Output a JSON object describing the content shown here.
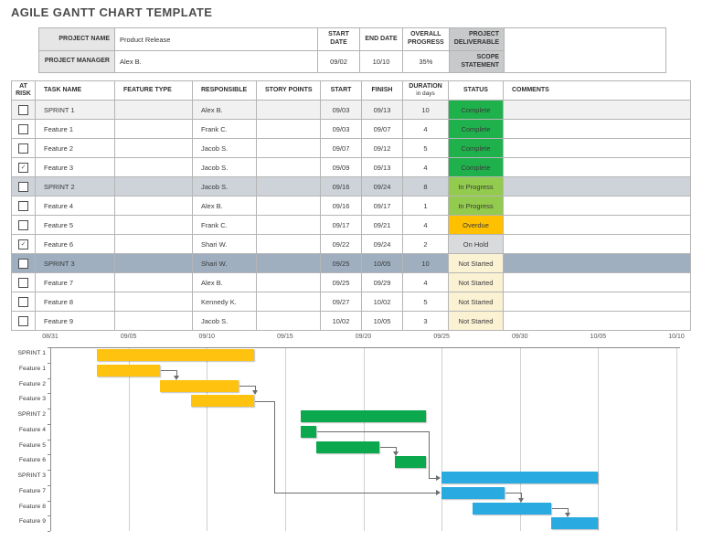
{
  "title": "AGILE GANTT CHART TEMPLATE",
  "colors": {
    "row_styles": {
      "sprint1": "#f1f1f1",
      "sprint2": "#cdd3d9",
      "sprint3": "#9fafc0"
    },
    "status": {
      "Complete": "#1fb24c",
      "In Progress": "#92cb4e",
      "Overdue": "#ffc000",
      "On Hold": "#d8dadb",
      "Not Started": "#fbf1d3"
    },
    "bars": {
      "yellow": "#ffc20e",
      "green": "#0ca84e",
      "blue": "#29abe2"
    }
  },
  "project_info": {
    "name_label": "PROJECT NAME",
    "name_value": "Product Release",
    "manager_label": "PROJECT MANAGER",
    "manager_value": "Alex B.",
    "start_label": "START DATE",
    "start_value": "09/02",
    "end_label": "END DATE",
    "end_value": "10/10",
    "progress_label": "OVERALL PROGRESS",
    "progress_value": "35%",
    "deliverable_label": "PROJECT DELIVERABLE",
    "scope_label": "SCOPE STATEMENT"
  },
  "table": {
    "headers": {
      "at_risk": "AT\nRISK",
      "task": "TASK NAME",
      "feature": "FEATURE TYPE",
      "responsible": "RESPONSIBLE",
      "story": "STORY POINTS",
      "start": "START",
      "finish": "FINISH",
      "duration": "DURATION",
      "duration_sub": "in days",
      "status": "STATUS",
      "comments": "COMMENTS"
    },
    "rows": [
      {
        "at_risk": false,
        "task": "SPRINT 1",
        "feature_type": "",
        "responsible": "Alex B.",
        "story_points": "",
        "start": "09/03",
        "finish": "09/13",
        "duration": "10",
        "status": "Complete",
        "comments": "",
        "row_style": "sprint1"
      },
      {
        "at_risk": false,
        "task": "Feature 1",
        "feature_type": "",
        "responsible": "Frank C.",
        "story_points": "",
        "start": "09/03",
        "finish": "09/07",
        "duration": "4",
        "status": "Complete",
        "comments": "",
        "row_style": ""
      },
      {
        "at_risk": false,
        "task": "Feature 2",
        "feature_type": "",
        "responsible": "Jacob S.",
        "story_points": "",
        "start": "09/07",
        "finish": "09/12",
        "duration": "5",
        "status": "Complete",
        "comments": "",
        "row_style": ""
      },
      {
        "at_risk": true,
        "task": "Feature 3",
        "feature_type": "",
        "responsible": "Jacob S.",
        "story_points": "",
        "start": "09/09",
        "finish": "09/13",
        "duration": "4",
        "status": "Complete",
        "comments": "",
        "row_style": ""
      },
      {
        "at_risk": false,
        "task": "SPRINT 2",
        "feature_type": "",
        "responsible": "Jacob S.",
        "story_points": "",
        "start": "09/16",
        "finish": "09/24",
        "duration": "8",
        "status": "In Progress",
        "comments": "",
        "row_style": "sprint2"
      },
      {
        "at_risk": false,
        "task": "Feature 4",
        "feature_type": "",
        "responsible": "Alex B.",
        "story_points": "",
        "start": "09/16",
        "finish": "09/17",
        "duration": "1",
        "status": "In Progress",
        "comments": "",
        "row_style": ""
      },
      {
        "at_risk": false,
        "task": "Feature 5",
        "feature_type": "",
        "responsible": "Frank C.",
        "story_points": "",
        "start": "09/17",
        "finish": "09/21",
        "duration": "4",
        "status": "Overdue",
        "comments": "",
        "row_style": ""
      },
      {
        "at_risk": true,
        "task": "Feature 6",
        "feature_type": "",
        "responsible": "Shari W.",
        "story_points": "",
        "start": "09/22",
        "finish": "09/24",
        "duration": "2",
        "status": "On Hold",
        "comments": "",
        "row_style": ""
      },
      {
        "at_risk": false,
        "task": "SPRINT 3",
        "feature_type": "",
        "responsible": "Shari W.",
        "story_points": "",
        "start": "09/25",
        "finish": "10/05",
        "duration": "10",
        "status": "Not Started",
        "comments": "",
        "row_style": "sprint3"
      },
      {
        "at_risk": false,
        "task": "Feature 7",
        "feature_type": "",
        "responsible": "Alex B.",
        "story_points": "",
        "start": "09/25",
        "finish": "09/29",
        "duration": "4",
        "status": "Not Started",
        "comments": "",
        "row_style": ""
      },
      {
        "at_risk": false,
        "task": "Feature 8",
        "feature_type": "",
        "responsible": "Kennedy K.",
        "story_points": "",
        "start": "09/27",
        "finish": "10/02",
        "duration": "5",
        "status": "Not Started",
        "comments": "",
        "row_style": ""
      },
      {
        "at_risk": false,
        "task": "Feature 9",
        "feature_type": "",
        "responsible": "Jacob S.",
        "story_points": "",
        "start": "10/02",
        "finish": "10/05",
        "duration": "3",
        "status": "Not Started",
        "comments": "",
        "row_style": ""
      }
    ]
  },
  "gantt": {
    "connectors": [
      {
        "from": "Feature 1",
        "to": "Feature 2",
        "kind": "step"
      },
      {
        "from": "Feature 2",
        "to": "Feature 3",
        "kind": "step"
      },
      {
        "from": "Feature 3",
        "to": "Feature 7",
        "kind": "route",
        "via_day": 14.3
      },
      {
        "from": "Feature 4",
        "to": "SPRINT 3",
        "kind": "route",
        "via_day": 24.2
      },
      {
        "from": "Feature 5",
        "to": "Feature 6",
        "kind": "step"
      },
      {
        "from": "Feature 7",
        "to": "Feature 8",
        "kind": "step"
      },
      {
        "from": "Feature 8",
        "to": "Feature 9",
        "kind": "step"
      }
    ]
  },
  "chart_data": {
    "type": "bar",
    "subtype": "gantt",
    "title": "",
    "x_axis": {
      "ticks": [
        "08/31",
        "09/05",
        "09/10",
        "09/15",
        "09/20",
        "09/25",
        "09/30",
        "10/05",
        "10/10"
      ],
      "range": [
        "08/31",
        "10/10"
      ],
      "grid": true
    },
    "tasks": [
      {
        "name": "SPRINT 1",
        "start": "09/03",
        "finish": "09/13",
        "duration_days": 10,
        "color": "yellow"
      },
      {
        "name": "Feature 1",
        "start": "09/03",
        "finish": "09/07",
        "duration_days": 4,
        "color": "yellow"
      },
      {
        "name": "Feature 2",
        "start": "09/07",
        "finish": "09/12",
        "duration_days": 5,
        "color": "yellow"
      },
      {
        "name": "Feature 3",
        "start": "09/09",
        "finish": "09/13",
        "duration_days": 4,
        "color": "yellow"
      },
      {
        "name": "SPRINT 2",
        "start": "09/16",
        "finish": "09/24",
        "duration_days": 8,
        "color": "green"
      },
      {
        "name": "Feature 4",
        "start": "09/16",
        "finish": "09/17",
        "duration_days": 1,
        "color": "green"
      },
      {
        "name": "Feature 5",
        "start": "09/17",
        "finish": "09/21",
        "duration_days": 4,
        "color": "green"
      },
      {
        "name": "Feature 6",
        "start": "09/22",
        "finish": "09/24",
        "duration_days": 2,
        "color": "green"
      },
      {
        "name": "SPRINT 3",
        "start": "09/25",
        "finish": "10/05",
        "duration_days": 10,
        "color": "blue"
      },
      {
        "name": "Feature 7",
        "start": "09/25",
        "finish": "09/29",
        "duration_days": 4,
        "color": "blue"
      },
      {
        "name": "Feature 8",
        "start": "09/27",
        "finish": "10/02",
        "duration_days": 5,
        "color": "blue"
      },
      {
        "name": "Feature 9",
        "start": "10/02",
        "finish": "10/05",
        "duration_days": 3,
        "color": "blue"
      }
    ]
  }
}
